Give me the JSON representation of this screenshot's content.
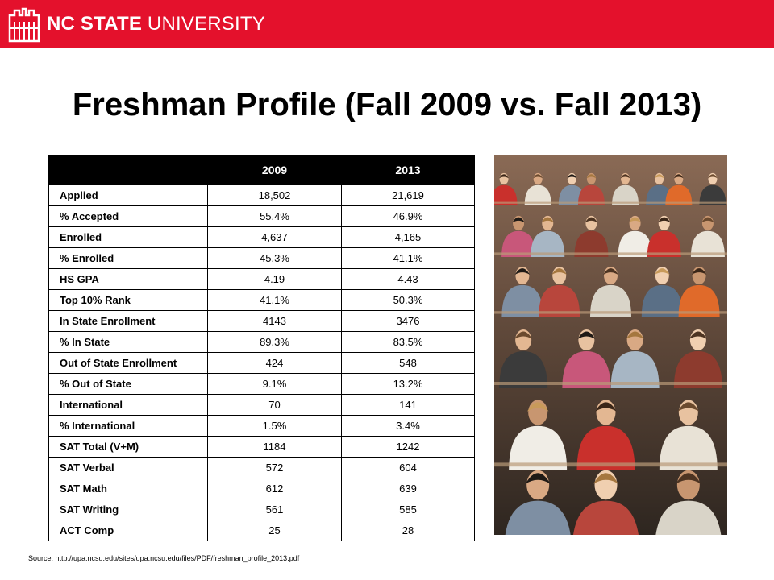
{
  "header": {
    "brand_bold": "NC STATE",
    "brand_light": "UNIVERSITY",
    "brand_color": "#e4112c"
  },
  "slide": {
    "title": "Freshman Profile (Fall 2009 vs. Fall 2013)"
  },
  "table": {
    "columns": [
      "",
      "2009",
      "2013"
    ],
    "rows": [
      {
        "label": "Applied",
        "v2009": "18,502",
        "v2013": "21,619"
      },
      {
        "label": "% Accepted",
        "v2009": "55.4%",
        "v2013": "46.9%"
      },
      {
        "label": "Enrolled",
        "v2009": "4,637",
        "v2013": "4,165"
      },
      {
        "label": "% Enrolled",
        "v2009": "45.3%",
        "v2013": "41.1%"
      },
      {
        "label": "HS GPA",
        "v2009": "4.19",
        "v2013": "4.43"
      },
      {
        "label": "Top 10% Rank",
        "v2009": "41.1%",
        "v2013": "50.3%"
      },
      {
        "label": "In State Enrollment",
        "v2009": "4143",
        "v2013": "3476"
      },
      {
        "label": "% In State",
        "v2009": "89.3%",
        "v2013": "83.5%"
      },
      {
        "label": "Out of State Enrollment",
        "v2009": "424",
        "v2013": "548"
      },
      {
        "label": "% Out of State",
        "v2009": "9.1%",
        "v2013": "13.2%"
      },
      {
        "label": "International",
        "v2009": "70",
        "v2013": "141"
      },
      {
        "label": "% International",
        "v2009": "1.5%",
        "v2013": "3.4%"
      },
      {
        "label": "SAT Total (V+M)",
        "v2009": "1184",
        "v2013": "1242"
      },
      {
        "label": "SAT Verbal",
        "v2009": "572",
        "v2013": "604"
      },
      {
        "label": "SAT Math",
        "v2009": "612",
        "v2013": "639"
      },
      {
        "label": "SAT Writing",
        "v2009": "561",
        "v2013": "585"
      },
      {
        "label": "ACT Comp",
        "v2009": "25",
        "v2013": "28"
      }
    ]
  },
  "footer": {
    "source": "Source: http://upa.ncsu.edu/sites/upa.ncsu.edu/files/PDF/freshman_profile_2013.pdf"
  }
}
